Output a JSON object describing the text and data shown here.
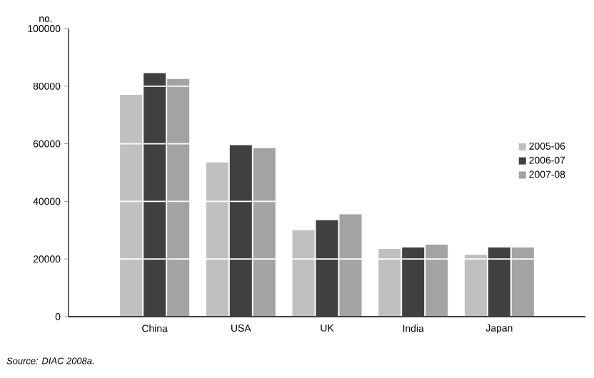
{
  "chart_data": {
    "type": "bar",
    "ylabel": "no.",
    "categories": [
      "China",
      "USA",
      "UK",
      "India",
      "Japan"
    ],
    "series": [
      {
        "name": "2005-06",
        "color": "#c0c0c0",
        "values": [
          77000,
          53500,
          30000,
          23500,
          21500
        ]
      },
      {
        "name": "2006-07",
        "color": "#404040",
        "values": [
          84500,
          59500,
          33500,
          24000,
          24000
        ]
      },
      {
        "name": "2007-08",
        "color": "#a3a3a3",
        "values": [
          82500,
          58500,
          35500,
          25000,
          24000
        ]
      }
    ],
    "ylim": [
      0,
      100000
    ],
    "yticks": [
      0,
      20000,
      40000,
      60000,
      80000,
      100000
    ],
    "grid": "y",
    "legend": "right",
    "annotations": [
      "Source: DIAC 2008a."
    ]
  }
}
